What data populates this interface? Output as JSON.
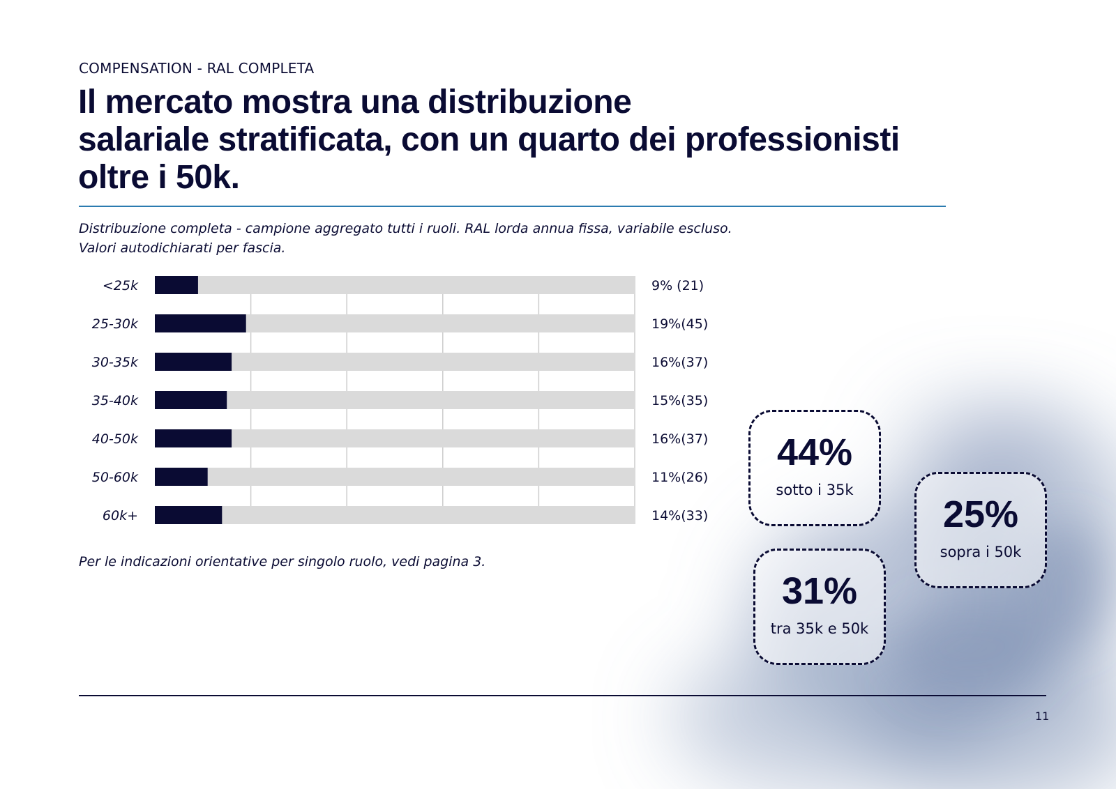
{
  "eyebrow": "COMPENSATION - RAL COMPLETA",
  "title": {
    "line1": "Il mercato mostra una distribuzione",
    "line2": "salariale stratificata, con un quarto dei professionisti",
    "line3": "oltre i 50k."
  },
  "subtitle": {
    "line1": "Distribuzione completa - campione aggregato tutti i ruoli. RAL lorda annua fissa, variabile escluso.",
    "line2": "Valori autodichiarati per fascia."
  },
  "chart_data": {
    "type": "bar",
    "orientation": "horizontal",
    "categories": [
      "<25k",
      "25-30k",
      "30-35k",
      "35-40k",
      "40-50k",
      "50-60k",
      "60k+"
    ],
    "values": [
      9,
      19,
      16,
      15,
      16,
      11,
      14
    ],
    "counts": [
      21,
      45,
      37,
      35,
      37,
      26,
      33
    ],
    "value_labels": [
      "9% (21)",
      "19%(45)",
      "16%(37)",
      "15%(35)",
      "16%(37)",
      "11%(26)",
      "14%(33)"
    ],
    "xlim": [
      0,
      100
    ],
    "grid": true,
    "colors": {
      "bar": "#0a0b33",
      "track": "#dadada",
      "grid": "#cccccc"
    }
  },
  "note": "Per le indicazioni orientative per singolo ruolo, vedi pagina 3.",
  "stats": [
    {
      "value": "44%",
      "label": "sotto i 35k"
    },
    {
      "value": "31%",
      "label": "tra 35k e 50k"
    },
    {
      "value": "25%",
      "label": "sopra i 50k"
    }
  ],
  "page_number": "11",
  "colors": {
    "ink": "#0a0b33",
    "accent_rule": "#2b7bb0",
    "wash": "#8396b8"
  }
}
